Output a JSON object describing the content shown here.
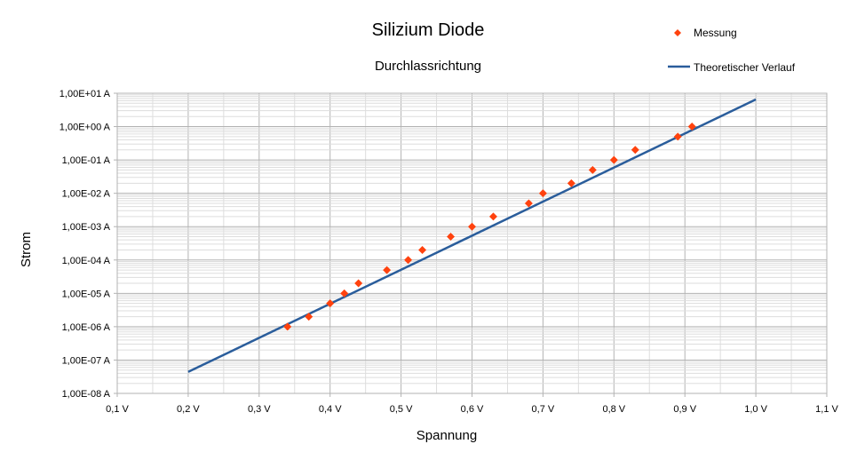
{
  "chart_data": {
    "type": "scatter",
    "title": "Silizium Diode",
    "subtitle": "Durchlassrichtung",
    "xlabel": "Spannung",
    "ylabel": "Strom",
    "xlim": [
      0.1,
      1.1
    ],
    "ylim": [
      1e-08,
      10
    ],
    "y_scale": "log",
    "grid": true,
    "legend_position": "top-right",
    "x_ticks": [
      {
        "value": 0.1,
        "label": "0,1 V"
      },
      {
        "value": 0.2,
        "label": "0,2 V"
      },
      {
        "value": 0.3,
        "label": "0,3 V"
      },
      {
        "value": 0.4,
        "label": "0,4 V"
      },
      {
        "value": 0.5,
        "label": "0,5 V"
      },
      {
        "value": 0.6,
        "label": "0,6 V"
      },
      {
        "value": 0.7,
        "label": "0,7 V"
      },
      {
        "value": 0.8,
        "label": "0,8 V"
      },
      {
        "value": 0.9,
        "label": "0,9 V"
      },
      {
        "value": 1.0,
        "label": "1,0 V"
      },
      {
        "value": 1.1,
        "label": "1,1 V"
      }
    ],
    "y_ticks": [
      {
        "value": 1e-08,
        "label": "1,00E-08 A"
      },
      {
        "value": 1e-07,
        "label": "1,00E-07 A"
      },
      {
        "value": 1e-06,
        "label": "1,00E-06 A"
      },
      {
        "value": 1e-05,
        "label": "1,00E-05 A"
      },
      {
        "value": 0.0001,
        "label": "1,00E-04 A"
      },
      {
        "value": 0.001,
        "label": "1,00E-03 A"
      },
      {
        "value": 0.01,
        "label": "1,00E-02 A"
      },
      {
        "value": 0.1,
        "label": "1,00E-01 A"
      },
      {
        "value": 1,
        "label": "1,00E+00 A"
      },
      {
        "value": 10,
        "label": "1,00E+01 A"
      }
    ],
    "series": [
      {
        "name": "Messung",
        "kind": "markers",
        "marker": "diamond",
        "color": "#ff420e",
        "x": [
          0.34,
          0.37,
          0.4,
          0.42,
          0.44,
          0.48,
          0.51,
          0.53,
          0.57,
          0.6,
          0.63,
          0.68,
          0.7,
          0.74,
          0.77,
          0.8,
          0.83,
          0.89,
          0.91
        ],
        "y": [
          1e-06,
          2e-06,
          5e-06,
          1e-05,
          2e-05,
          5e-05,
          0.0001,
          0.0002,
          0.0005,
          0.001,
          0.002,
          0.005,
          0.01,
          0.02,
          0.05,
          0.1,
          0.2,
          0.5,
          1
        ]
      },
      {
        "name": "Theoretischer Verlauf",
        "kind": "line",
        "color": "#2a5d9b",
        "x": [
          0.2,
          1.0
        ],
        "y": [
          4.4e-08,
          6.5
        ]
      }
    ]
  }
}
